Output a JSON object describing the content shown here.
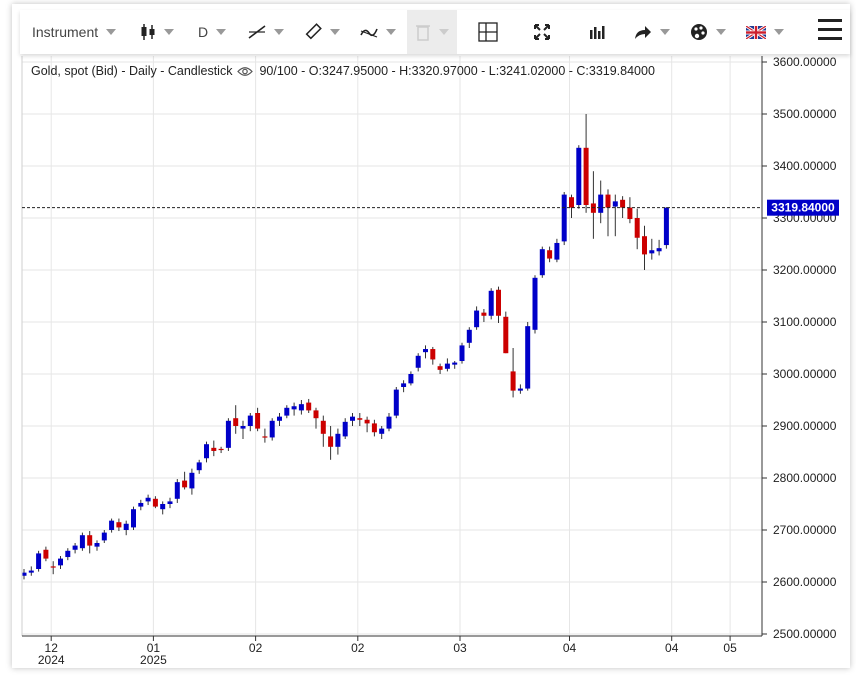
{
  "toolbar": {
    "instrument_label": "Instrument",
    "timeframe_label": "D",
    "icons": [
      "candlestick-type-icon",
      "trendline-icon",
      "ruler-icon",
      "indicators-icon",
      "trash-icon",
      "crosshair-icon",
      "fullscreen-icon",
      "volume-icon",
      "share-icon",
      "palette-icon",
      "uk-flag-icon",
      "menu-icon"
    ]
  },
  "info": {
    "title": "Gold, spot (Bid) - Daily - Candlestick",
    "range": "90/100",
    "ohlc": "- O:3247.95000 - H:3320.97000 - L:3241.02000 - C:3319.84000"
  },
  "chart_data": {
    "type": "candlestick",
    "up_color": "#0000c8",
    "down_color": "#cc0000",
    "ylim": [
      2500,
      3600
    ],
    "y_ticks": [
      "3600.00000",
      "3500.00000",
      "3400.00000",
      "3300.00000",
      "3200.00000",
      "3100.00000",
      "3000.00000",
      "2900.00000",
      "2800.00000",
      "2700.00000",
      "2600.00000",
      "2500.00000"
    ],
    "x_ticks": [
      {
        "day": "12",
        "year": "2024"
      },
      {
        "day": "01",
        "year": "2025"
      },
      {
        "day": "02",
        "year": ""
      },
      {
        "day": "02",
        "year": ""
      },
      {
        "day": "03",
        "year": ""
      },
      {
        "day": "04",
        "year": ""
      },
      {
        "day": "04",
        "year": ""
      },
      {
        "day": "05",
        "year": ""
      }
    ],
    "last_price": 3319.84,
    "last_price_label": "3319.84000",
    "candles": [
      [
        2612,
        2625,
        2605,
        2618
      ],
      [
        2618,
        2630,
        2612,
        2622
      ],
      [
        2625,
        2660,
        2620,
        2655
      ],
      [
        2662,
        2668,
        2640,
        2645
      ],
      [
        2630,
        2640,
        2615,
        2628
      ],
      [
        2632,
        2650,
        2625,
        2645
      ],
      [
        2648,
        2665,
        2642,
        2660
      ],
      [
        2662,
        2675,
        2655,
        2670
      ],
      [
        2665,
        2695,
        2660,
        2690
      ],
      [
        2690,
        2698,
        2655,
        2670
      ],
      [
        2668,
        2680,
        2660,
        2675
      ],
      [
        2680,
        2700,
        2675,
        2695
      ],
      [
        2700,
        2722,
        2695,
        2718
      ],
      [
        2715,
        2722,
        2698,
        2705
      ],
      [
        2700,
        2718,
        2690,
        2712
      ],
      [
        2705,
        2745,
        2700,
        2740
      ],
      [
        2745,
        2758,
        2738,
        2752
      ],
      [
        2755,
        2768,
        2748,
        2762
      ],
      [
        2760,
        2765,
        2742,
        2745
      ],
      [
        2740,
        2755,
        2730,
        2750
      ],
      [
        2750,
        2762,
        2742,
        2755
      ],
      [
        2760,
        2798,
        2752,
        2792
      ],
      [
        2795,
        2812,
        2778,
        2782
      ],
      [
        2780,
        2818,
        2768,
        2810
      ],
      [
        2815,
        2835,
        2808,
        2830
      ],
      [
        2838,
        2870,
        2830,
        2865
      ],
      [
        2858,
        2872,
        2842,
        2852
      ],
      [
        2856,
        2860,
        2848,
        2855
      ],
      [
        2858,
        2915,
        2852,
        2910
      ],
      [
        2915,
        2940,
        2885,
        2900
      ],
      [
        2895,
        2910,
        2875,
        2900
      ],
      [
        2900,
        2925,
        2890,
        2920
      ],
      [
        2925,
        2935,
        2890,
        2895
      ],
      [
        2880,
        2895,
        2868,
        2878
      ],
      [
        2878,
        2915,
        2872,
        2910
      ],
      [
        2910,
        2925,
        2900,
        2918
      ],
      [
        2920,
        2940,
        2915,
        2935
      ],
      [
        2932,
        2945,
        2920,
        2938
      ],
      [
        2930,
        2950,
        2922,
        2942
      ],
      [
        2945,
        2952,
        2925,
        2930
      ],
      [
        2930,
        2935,
        2895,
        2915
      ],
      [
        2910,
        2920,
        2860,
        2885
      ],
      [
        2880,
        2900,
        2835,
        2860
      ],
      [
        2860,
        2895,
        2845,
        2885
      ],
      [
        2880,
        2915,
        2875,
        2908
      ],
      [
        2910,
        2925,
        2900,
        2918
      ],
      [
        2915,
        2925,
        2900,
        2912
      ],
      [
        2912,
        2918,
        2888,
        2905
      ],
      [
        2905,
        2912,
        2880,
        2888
      ],
      [
        2885,
        2900,
        2875,
        2895
      ],
      [
        2895,
        2925,
        2890,
        2918
      ],
      [
        2920,
        2975,
        2915,
        2970
      ],
      [
        2975,
        2988,
        2965,
        2982
      ],
      [
        2982,
        3005,
        2978,
        3000
      ],
      [
        3012,
        3040,
        3005,
        3035
      ],
      [
        3042,
        3055,
        3030,
        3048
      ],
      [
        3048,
        3052,
        3018,
        3028
      ],
      [
        3015,
        3020,
        3000,
        3008
      ],
      [
        3010,
        3030,
        3005,
        3020
      ],
      [
        3018,
        3025,
        3010,
        3022
      ],
      [
        3025,
        3060,
        3020,
        3055
      ],
      [
        3060,
        3090,
        3050,
        3085
      ],
      [
        3090,
        3130,
        3085,
        3122
      ],
      [
        3118,
        3125,
        3100,
        3112
      ],
      [
        3112,
        3165,
        3105,
        3160
      ],
      [
        3162,
        3168,
        3098,
        3112
      ],
      [
        3110,
        3120,
        3040,
        3040
      ],
      [
        3005,
        3050,
        2955,
        2968
      ],
      [
        2968,
        2980,
        2962,
        2972
      ],
      [
        2972,
        3100,
        2968,
        3092
      ],
      [
        3085,
        3190,
        3078,
        3185
      ],
      [
        3190,
        3245,
        3185,
        3240
      ],
      [
        3238,
        3245,
        3215,
        3222
      ],
      [
        3220,
        3260,
        3215,
        3252
      ],
      [
        3255,
        3350,
        3248,
        3345
      ],
      [
        3340,
        3345,
        3300,
        3320
      ],
      [
        3325,
        3440,
        3318,
        3435
      ],
      [
        3435,
        3500,
        3310,
        3325
      ],
      [
        3328,
        3390,
        3260,
        3310
      ],
      [
        3310,
        3372,
        3290,
        3345
      ],
      [
        3345,
        3355,
        3265,
        3320
      ],
      [
        3322,
        3345,
        3265,
        3332
      ],
      [
        3335,
        3342,
        3300,
        3320
      ],
      [
        3320,
        3340,
        3290,
        3298
      ],
      [
        3300,
        3318,
        3240,
        3262
      ],
      [
        3265,
        3285,
        3200,
        3230
      ],
      [
        3232,
        3260,
        3220,
        3238
      ],
      [
        3236,
        3258,
        3228,
        3242
      ],
      [
        3247.95,
        3320.97,
        3241.02,
        3319.84
      ]
    ]
  }
}
